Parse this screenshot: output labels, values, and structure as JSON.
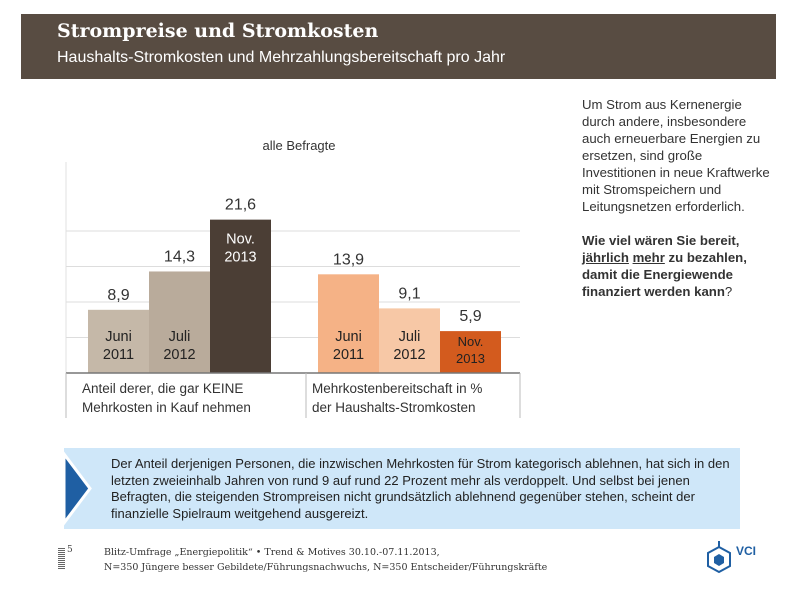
{
  "header": {
    "title": "Strompreise und Stromkosten",
    "subtitle": "Haushalts-Stromkosten und Mehrzahlungsbereitschaft pro Jahr"
  },
  "chart_data": {
    "type": "bar",
    "title": "alle Befragte",
    "ylim": [
      0,
      25
    ],
    "groups": [
      {
        "label_line1": "Anteil derer, die gar KEINE",
        "label_line2": "Mehrkosten in Kauf nehmen",
        "bars": [
          {
            "period_line1": "Juni",
            "period_line2": "2011",
            "value": 8.9,
            "value_label": "8,9",
            "color": "#c5b8a8",
            "text_color": "#222222"
          },
          {
            "period_line1": "Juli",
            "period_line2": "2012",
            "value": 14.3,
            "value_label": "14,3",
            "color": "#b9ab9b",
            "text_color": "#222222"
          },
          {
            "period_line1": "Nov.",
            "period_line2": "2013",
            "value": 21.6,
            "value_label": "21,6",
            "color": "#4b3e35",
            "text_color": "#ffffff"
          }
        ]
      },
      {
        "label_line1": "Mehrkostenbereitschaft in %",
        "label_line2": "der Haushalts-Stromkosten",
        "bars": [
          {
            "period_line1": "Juni",
            "period_line2": "2011",
            "value": 13.9,
            "value_label": "13,9",
            "color": "#f5b286",
            "text_color": "#222222"
          },
          {
            "period_line1": "Juli",
            "period_line2": "2012",
            "value": 9.1,
            "value_label": "9,1",
            "color": "#f7c8a6",
            "text_color": "#222222"
          },
          {
            "period_line1": "Nov.",
            "period_line2": "2013",
            "value": 5.9,
            "value_label": "5,9",
            "color": "#d35b1e",
            "text_color": "#222222"
          }
        ]
      }
    ]
  },
  "side": {
    "intro": "Um Strom aus Kernenergie durch andere, insbesondere auch erneuerbare Energien zu ersetzen, sind große Investitionen in neue Kraftwerke mit Stromspeichern und Leitungsnetzen erforderlich.",
    "q_part1": "Wie viel wären Sie bereit,",
    "q_underline1": "jährlich",
    "q_underline2": "mehr",
    "q_part2": "zu bezahlen, damit die Energiewende finanziert werden kann",
    "q_mark": "?"
  },
  "note": {
    "text": "Der Anteil derjenigen Personen, die inzwischen Mehrkosten für Strom kategorisch ablehnen, hat sich in den letzten zweieinhalb Jahren von rund 9 auf rund 22 Prozent mehr als verdoppelt. Und selbst bei jenen Befragten, die steigenden Strompreisen nicht grundsätzlich ablehnend gegenüber stehen, scheint der finanzielle Spielraum weitgehend ausgereizt."
  },
  "footer": {
    "page": "5",
    "line1": "Blitz-Umfrage „Energiepolitik“ • Trend & Motives 30.10.-07.11.2013,",
    "line2": "N=350 Jüngere besser Gebildete/Führungsnachwuchs, N=350 Entscheider/Führungskräfte",
    "logo_text": "VCI"
  },
  "colors": {
    "header_bg": "#584c42",
    "note_bg": "#cfe7f9",
    "note_arrow": "#1f5fa3"
  }
}
